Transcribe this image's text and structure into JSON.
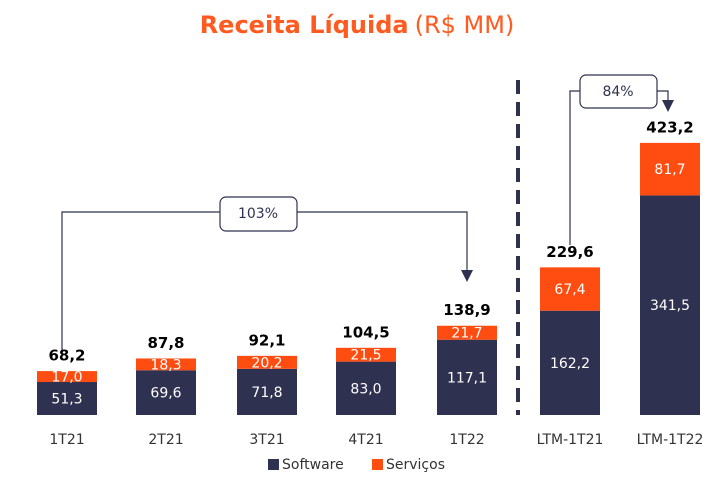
{
  "chart_data": {
    "type": "stacked_bar",
    "title": "Receita Líquida",
    "title_unit": "(R$ MM)",
    "categories": [
      "1T21",
      "2T21",
      "3T21",
      "4T21",
      "1T22",
      "LTM-1T21",
      "LTM-1T22"
    ],
    "series": [
      {
        "name": "Software",
        "color": "#2e3150",
        "values": [
          51.3,
          69.6,
          71.8,
          83.0,
          117.1,
          162.2,
          341.5
        ],
        "value_labels": [
          "51,3",
          "69,6",
          "71,8",
          "83,0",
          "117,1",
          "162,2",
          "341,5"
        ]
      },
      {
        "name": "Serviços",
        "color": "#ff4d12",
        "values": [
          17.0,
          18.3,
          20.2,
          21.5,
          21.7,
          67.4,
          81.7
        ],
        "value_labels": [
          "17,0",
          "18,3",
          "20,2",
          "21,5",
          "21,7",
          "67,4",
          "81,7"
        ]
      }
    ],
    "totals": {
      "values": [
        68.2,
        87.8,
        92.1,
        104.5,
        138.9,
        229.6,
        423.2
      ],
      "value_labels": [
        "68,2",
        "87,8",
        "92,1",
        "104,5",
        "138,9",
        "229,6",
        "423,2"
      ]
    },
    "annotations": [
      "103%",
      "84%"
    ],
    "legend": "bottom"
  }
}
